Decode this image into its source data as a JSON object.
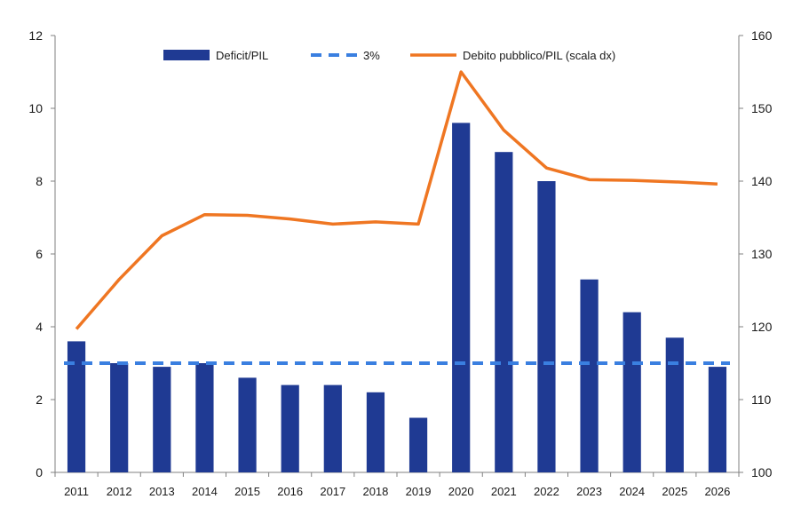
{
  "chart_data": {
    "type": "bar",
    "categories": [
      "2011",
      "2012",
      "2013",
      "2014",
      "2015",
      "2016",
      "2017",
      "2018",
      "2019",
      "2020",
      "2021",
      "2022",
      "2023",
      "2024",
      "2025",
      "2026"
    ],
    "series": [
      {
        "name": "Deficit/PIL",
        "type": "bar",
        "axis": "left",
        "color": "#1f3a93",
        "values": [
          3.6,
          3.0,
          2.9,
          3.0,
          2.6,
          2.4,
          2.4,
          2.2,
          1.5,
          9.6,
          8.8,
          8.0,
          5.3,
          4.4,
          3.7,
          2.9
        ]
      },
      {
        "name": "3%",
        "type": "line",
        "style": "dashed",
        "axis": "left",
        "color": "#3a7fe0",
        "values": [
          3,
          3,
          3,
          3,
          3,
          3,
          3,
          3,
          3,
          3,
          3,
          3,
          3,
          3,
          3,
          3
        ]
      },
      {
        "name": "Debito pubblico/PIL (scala dx)",
        "type": "line",
        "axis": "right",
        "color": "#ef7622",
        "values": [
          119.7,
          126.5,
          132.5,
          135.4,
          135.3,
          134.8,
          134.1,
          134.4,
          134.1,
          155.0,
          147.0,
          141.8,
          140.2,
          140.1,
          139.9,
          139.6
        ]
      }
    ],
    "y_left": {
      "lim": [
        0,
        12
      ],
      "ticks": [
        "0",
        "2",
        "4",
        "6",
        "8",
        "10",
        "12"
      ]
    },
    "y_right": {
      "lim": [
        100,
        160
      ],
      "ticks": [
        "100",
        "110",
        "120",
        "130",
        "140",
        "150",
        "160"
      ]
    },
    "grid": false,
    "legend": {
      "position": "top-center",
      "entries": [
        "Deficit/PIL",
        "3%",
        "Debito pubblico/PIL (scala dx)"
      ]
    }
  }
}
